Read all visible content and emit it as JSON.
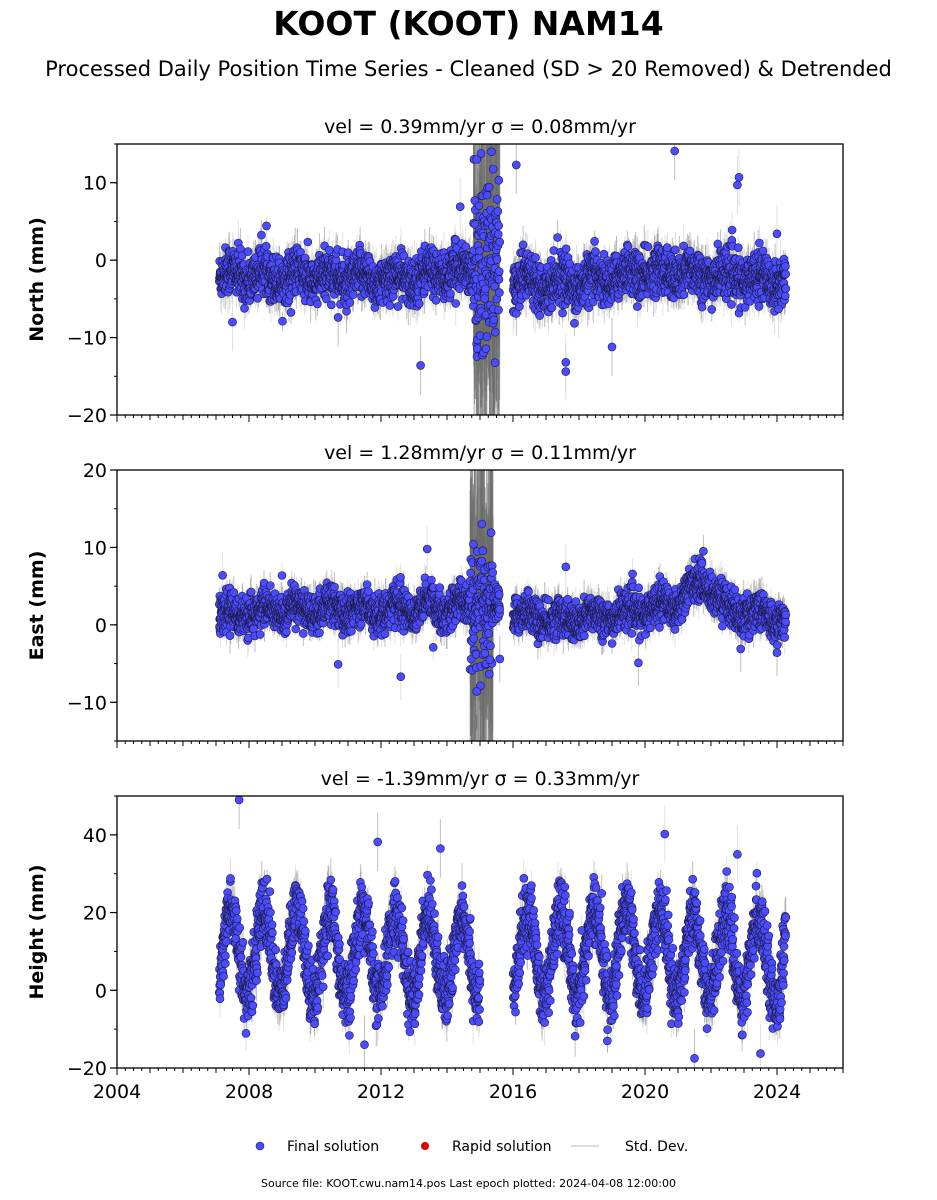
{
  "header": {
    "title": "KOOT (KOOT) NAM14",
    "subtitle": "Processed Daily Position Time Series - Cleaned (SD > 20 Removed) & Detrended"
  },
  "footer": {
    "source_text": "Source file: KOOT.cwu.nam14.pos  Last epoch plotted: 2024-04-08 12:00:00"
  },
  "legend": {
    "placement": "bottom-center",
    "items": [
      {
        "label": "Final solution",
        "color": "#4b4bff"
      },
      {
        "label": "Rapid solution",
        "color": "#dd0000"
      },
      {
        "label": "Std. Dev.",
        "color": "#d0d0d0"
      }
    ]
  },
  "colors": {
    "final_point": "#4b4bff",
    "point_edge": "#1a1a40",
    "std_dev": "#c8c8c8"
  },
  "chart_data": [
    {
      "type": "scatter",
      "component": "north",
      "title": "vel = 0.39mm/yr   σ = 0.08mm/yr",
      "ylabel": "North (mm)",
      "xlim": [
        2004,
        2026
      ],
      "ylim": [
        -20,
        15
      ],
      "yticks": [
        -20,
        -10,
        0,
        10
      ],
      "xticks": [
        2004,
        2008,
        2012,
        2016,
        2020,
        2024
      ],
      "data_span": [
        2007.1,
        2024.27
      ],
      "gap": [
        2015.6,
        2016.0
      ],
      "level": [
        [
          2007.1,
          -1.8
        ],
        [
          2010.0,
          -2.2
        ],
        [
          2012.5,
          -2.5
        ],
        [
          2014.0,
          -1.5
        ],
        [
          2015.5,
          -1.0
        ],
        [
          2016.0,
          -2.5
        ],
        [
          2018.0,
          -3.0
        ],
        [
          2020.0,
          -1.5
        ],
        [
          2022.0,
          -2.0
        ],
        [
          2024.27,
          -2.5
        ]
      ],
      "seasonal_amplitude": 0.8,
      "scatter_sd": 1.5,
      "disturbed_span": [
        2014.8,
        2015.6
      ],
      "disturbed_sd": 6,
      "outliers": [
        [
          2007.5,
          -8.0
        ],
        [
          2013.2,
          -13.6
        ],
        [
          2014.4,
          6.9
        ],
        [
          2016.1,
          12.3
        ],
        [
          2017.6,
          -13.2
        ],
        [
          2017.6,
          -14.4
        ],
        [
          2019.0,
          -11.2
        ],
        [
          2020.9,
          14.1
        ],
        [
          2022.8,
          9.7
        ],
        [
          2022.85,
          10.7
        ],
        [
          2024.0,
          3.4
        ],
        [
          2024.05,
          -6.3
        ],
        [
          2010.7,
          -7.4
        ]
      ],
      "std_dev_half_width": 2.5,
      "std_dev_disturbed_half_width": 20
    },
    {
      "type": "scatter",
      "component": "east",
      "title": "vel = 1.28mm/yr   σ = 0.11mm/yr",
      "ylabel": "East (mm)",
      "xlim": [
        2004,
        2026
      ],
      "ylim": [
        -15,
        20
      ],
      "yticks": [
        -10,
        0,
        10,
        20
      ],
      "xticks": [
        2004,
        2008,
        2012,
        2016,
        2020,
        2024
      ],
      "data_span": [
        2007.1,
        2024.27
      ],
      "gap": [
        2015.6,
        2016.0
      ],
      "level": [
        [
          2007.1,
          1.0
        ],
        [
          2009.0,
          2.0
        ],
        [
          2012.0,
          2.0
        ],
        [
          2014.5,
          2.5
        ],
        [
          2015.5,
          2.0
        ],
        [
          2016.0,
          1.5
        ],
        [
          2017.5,
          0.5
        ],
        [
          2019.5,
          1.5
        ],
        [
          2021.0,
          3.0
        ],
        [
          2021.8,
          6.0
        ],
        [
          2022.5,
          2.0
        ],
        [
          2024.27,
          0.8
        ]
      ],
      "seasonal_amplitude": 0.8,
      "scatter_sd": 1.2,
      "disturbed_span": [
        2014.7,
        2015.4
      ],
      "disturbed_sd": 4,
      "outliers": [
        [
          2007.2,
          6.4
        ],
        [
          2010.7,
          -5.1
        ],
        [
          2012.6,
          -6.7
        ],
        [
          2013.4,
          9.8
        ],
        [
          2014.8,
          10.4
        ],
        [
          2014.9,
          -8.6
        ],
        [
          2015.3,
          -4.5
        ],
        [
          2015.6,
          -4.4
        ],
        [
          2017.6,
          7.5
        ],
        [
          2019.8,
          -4.9
        ],
        [
          2022.9,
          -3.1
        ],
        [
          2024.0,
          -3.6
        ]
      ],
      "std_dev_half_width": 2.0,
      "std_dev_disturbed_half_width": 20
    },
    {
      "type": "scatter",
      "component": "height",
      "title": "vel = -1.39mm/yr   σ = 0.33mm/yr",
      "ylabel": "Height (mm)",
      "xlim": [
        2004,
        2026
      ],
      "ylim": [
        -20,
        50
      ],
      "yticks": [
        -20,
        0,
        20,
        40
      ],
      "xticks": [
        2004,
        2008,
        2012,
        2016,
        2020,
        2024
      ],
      "xticklabels": [
        "2004",
        "2008",
        "2012",
        "2016",
        "2020",
        "2024"
      ],
      "data_span": [
        2007.1,
        2024.27
      ],
      "gap": [
        2015.0,
        2016.0
      ],
      "level": [
        [
          2007.1,
          10.0
        ],
        [
          2012.0,
          9.0
        ],
        [
          2015.0,
          9.0
        ],
        [
          2016.0,
          9.0
        ],
        [
          2020.0,
          10.0
        ],
        [
          2024.27,
          8.0
        ]
      ],
      "seasonal_amplitude": 11,
      "scatter_sd": 4,
      "disturbed_span": [
        0,
        0
      ],
      "disturbed_sd": 0,
      "outliers": [
        [
          2007.7,
          49.0
        ],
        [
          2011.9,
          38.2
        ],
        [
          2013.8,
          36.5
        ],
        [
          2020.6,
          40.2
        ],
        [
          2021.5,
          -17.5
        ],
        [
          2022.8,
          35.0
        ],
        [
          2023.5,
          -16.3
        ],
        [
          2011.5,
          -14.0
        ]
      ],
      "std_dev_half_width": 5,
      "std_dev_disturbed_half_width": 5
    }
  ]
}
